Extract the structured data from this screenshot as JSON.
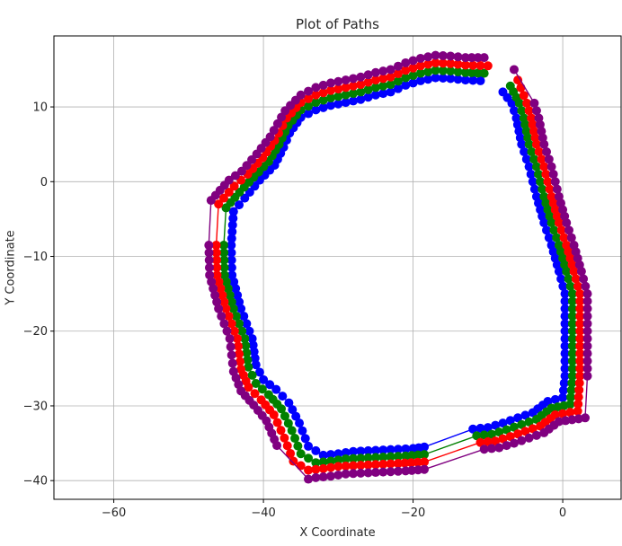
{
  "chart_data": {
    "type": "line",
    "title": "Plot of Paths",
    "xlabel": "X Coordinate",
    "ylabel": "Y Coordinate",
    "xlim": [
      -68,
      7.8
    ],
    "ylim": [
      -42.5,
      19.5
    ],
    "xticks": [
      -60,
      -40,
      -20,
      0
    ],
    "yticks": [
      -40,
      -30,
      -20,
      -10,
      0,
      10
    ],
    "grid": true,
    "legend": "none",
    "series": [
      {
        "color": "#0000ff",
        "points": [
          [
            -11,
            13.5
          ],
          [
            -13,
            13.6
          ],
          [
            -15,
            13.8
          ],
          [
            -17,
            13.9
          ],
          [
            -19,
            13.5
          ],
          [
            -21,
            12.9
          ],
          [
            -23,
            12
          ],
          [
            -25,
            11.6
          ],
          [
            -27,
            11
          ],
          [
            -29,
            10.6
          ],
          [
            -31,
            10.2
          ],
          [
            -33,
            9.6
          ],
          [
            -35,
            8.6
          ],
          [
            -36.5,
            6.5
          ],
          [
            -37.3,
            4.6
          ],
          [
            -38.5,
            2.2
          ],
          [
            -40.5,
            0.2
          ],
          [
            -42.5,
            -2.2
          ],
          [
            -44,
            -4
          ],
          [
            -44.3,
            -8.5
          ],
          [
            -44.2,
            -12.5
          ],
          [
            -43,
            -17
          ],
          [
            -41.5,
            -21
          ],
          [
            -41,
            -24.5
          ],
          [
            -40,
            -26.5
          ],
          [
            -38.3,
            -27.8
          ],
          [
            -36.6,
            -29.6
          ],
          [
            -35.2,
            -32.3
          ],
          [
            -34,
            -35.4
          ],
          [
            -32,
            -36.6
          ],
          [
            -30,
            -36.4
          ],
          [
            -28,
            -36.1
          ],
          [
            -26,
            -36
          ],
          [
            -24,
            -35.9
          ],
          [
            -22,
            -35.8
          ],
          [
            -20,
            -35.7
          ],
          [
            -18.5,
            -35.5
          ],
          [
            -12,
            -33.1
          ],
          [
            -10,
            -32.9
          ],
          [
            -8,
            -32.3
          ],
          [
            -6,
            -31.6
          ],
          [
            -4,
            -30.9
          ],
          [
            -2,
            -29.4
          ],
          [
            0,
            -28.9
          ],
          [
            0.3,
            -26
          ],
          [
            0.3,
            -22
          ],
          [
            0.3,
            -18
          ],
          [
            0.3,
            -15
          ],
          [
            -0.5,
            -12
          ],
          [
            -1.5,
            -8.5
          ],
          [
            -2.5,
            -5.5
          ],
          [
            -3.5,
            -2
          ],
          [
            -4.5,
            2
          ],
          [
            -5.5,
            5
          ],
          [
            -6.2,
            8.5
          ],
          [
            -6.8,
            10.5
          ],
          [
            -8,
            12
          ]
        ]
      },
      {
        "color": "#008000",
        "points": [
          [
            -10.5,
            14.5
          ],
          [
            -13,
            14.6
          ],
          [
            -15,
            14.8
          ],
          [
            -17,
            14.9
          ],
          [
            -19,
            14.5
          ],
          [
            -21,
            13.9
          ],
          [
            -23,
            13
          ],
          [
            -25,
            12.6
          ],
          [
            -27,
            12
          ],
          [
            -29,
            11.6
          ],
          [
            -31,
            11.2
          ],
          [
            -33,
            10.6
          ],
          [
            -35,
            9.6
          ],
          [
            -36.7,
            7.5
          ],
          [
            -37.9,
            5
          ],
          [
            -39.3,
            2.7
          ],
          [
            -41.3,
            0.6
          ],
          [
            -43.2,
            -1.4
          ],
          [
            -45,
            -3.5
          ],
          [
            -45.3,
            -8.5
          ],
          [
            -45.2,
            -12.5
          ],
          [
            -44,
            -17
          ],
          [
            -42.5,
            -21
          ],
          [
            -42,
            -24.8
          ],
          [
            -41,
            -27
          ],
          [
            -39.3,
            -28.5
          ],
          [
            -37.6,
            -30.4
          ],
          [
            -36.2,
            -33.3
          ],
          [
            -35,
            -36.4
          ],
          [
            -33,
            -37.6
          ],
          [
            -31,
            -37.4
          ],
          [
            -29,
            -37.1
          ],
          [
            -27,
            -37
          ],
          [
            -25,
            -36.9
          ],
          [
            -23,
            -36.8
          ],
          [
            -21,
            -36.7
          ],
          [
            -18.5,
            -36.5
          ],
          [
            -11.5,
            -34
          ],
          [
            -9.5,
            -33.8
          ],
          [
            -7.5,
            -33.2
          ],
          [
            -5.5,
            -32.5
          ],
          [
            -3.5,
            -31.8
          ],
          [
            -1.5,
            -30.3
          ],
          [
            1,
            -29.8
          ],
          [
            1.3,
            -26
          ],
          [
            1.3,
            -22
          ],
          [
            1.3,
            -18
          ],
          [
            1.3,
            -15
          ],
          [
            0.5,
            -12
          ],
          [
            -0.5,
            -8.5
          ],
          [
            -1.5,
            -5.5
          ],
          [
            -2.5,
            -2
          ],
          [
            -3.5,
            2
          ],
          [
            -4.5,
            5
          ],
          [
            -5.2,
            8.5
          ],
          [
            -5.8,
            10.5
          ],
          [
            -7,
            12.8
          ]
        ]
      },
      {
        "color": "#ff0000",
        "points": [
          [
            -10,
            15.5
          ],
          [
            -13,
            15.6
          ],
          [
            -15,
            15.8
          ],
          [
            -17,
            15.9
          ],
          [
            -19,
            15.5
          ],
          [
            -21,
            14.9
          ],
          [
            -23,
            14
          ],
          [
            -25,
            13.6
          ],
          [
            -27,
            13
          ],
          [
            -29,
            12.6
          ],
          [
            -31,
            12.2
          ],
          [
            -33,
            11.6
          ],
          [
            -35,
            10.6
          ],
          [
            -36.9,
            8.5
          ],
          [
            -38.5,
            5.5
          ],
          [
            -40.1,
            3.2
          ],
          [
            -42.1,
            1
          ],
          [
            -43.9,
            -0.6
          ],
          [
            -46,
            -3
          ],
          [
            -46.3,
            -8.5
          ],
          [
            -46.2,
            -12.5
          ],
          [
            -45,
            -17
          ],
          [
            -43.5,
            -21
          ],
          [
            -43,
            -25.1
          ],
          [
            -42,
            -27.5
          ],
          [
            -40.3,
            -29.2
          ],
          [
            -38.6,
            -31.2
          ],
          [
            -37.2,
            -34.3
          ],
          [
            -36,
            -37.4
          ],
          [
            -34,
            -38.6
          ],
          [
            -32,
            -38.4
          ],
          [
            -30,
            -38.1
          ],
          [
            -28,
            -38
          ],
          [
            -26,
            -37.9
          ],
          [
            -24,
            -37.8
          ],
          [
            -22,
            -37.7
          ],
          [
            -18.5,
            -37.5
          ],
          [
            -11,
            -34.9
          ],
          [
            -9,
            -34.7
          ],
          [
            -7,
            -34.1
          ],
          [
            -5,
            -33.4
          ],
          [
            -3,
            -32.7
          ],
          [
            -1,
            -31.2
          ],
          [
            2,
            -30.7
          ],
          [
            2.3,
            -26
          ],
          [
            2.3,
            -22
          ],
          [
            2.3,
            -18
          ],
          [
            2.3,
            -15
          ],
          [
            1.5,
            -12
          ],
          [
            0.5,
            -8.5
          ],
          [
            -0.5,
            -5.5
          ],
          [
            -1.5,
            -2
          ],
          [
            -2.5,
            2
          ],
          [
            -3.5,
            5
          ],
          [
            -4.2,
            8.5
          ],
          [
            -4.8,
            10.5
          ],
          [
            -6,
            13.6
          ]
        ]
      },
      {
        "color": "#800080",
        "points": [
          [
            -10.5,
            16.6
          ],
          [
            -13,
            16.6
          ],
          [
            -15,
            16.8
          ],
          [
            -17,
            16.9
          ],
          [
            -19,
            16.5
          ],
          [
            -21,
            15.9
          ],
          [
            -23,
            15
          ],
          [
            -25,
            14.6
          ],
          [
            -27,
            14
          ],
          [
            -29,
            13.6
          ],
          [
            -31,
            13.2
          ],
          [
            -33,
            12.6
          ],
          [
            -35,
            11.6
          ],
          [
            -37.1,
            9.5
          ],
          [
            -39.1,
            6
          ],
          [
            -40.9,
            3.7
          ],
          [
            -42.9,
            1.4
          ],
          [
            -44.6,
            0.2
          ],
          [
            -47,
            -2.5
          ],
          [
            -47.3,
            -8.5
          ],
          [
            -47.2,
            -12.5
          ],
          [
            -46,
            -17
          ],
          [
            -44.5,
            -21
          ],
          [
            -44,
            -25.4
          ],
          [
            -43,
            -28
          ],
          [
            -41.3,
            -29.9
          ],
          [
            -39.6,
            -32
          ],
          [
            -38.2,
            -35.3
          ],
          [
            -34,
            -39.8
          ],
          [
            -33,
            -39.6
          ],
          [
            -31,
            -39.4
          ],
          [
            -29,
            -39.1
          ],
          [
            -27,
            -39
          ],
          [
            -25,
            -38.9
          ],
          [
            -23,
            -38.8
          ],
          [
            -21,
            -38.7
          ],
          [
            -18.5,
            -38.5
          ],
          [
            -10.5,
            -35.8
          ],
          [
            -8.5,
            -35.6
          ],
          [
            -6.5,
            -35
          ],
          [
            -4.5,
            -34.3
          ],
          [
            -2.5,
            -33.6
          ],
          [
            -0.5,
            -32.1
          ],
          [
            3,
            -31.6
          ],
          [
            3.3,
            -26
          ],
          [
            3.3,
            -22
          ],
          [
            3.3,
            -18
          ],
          [
            3.3,
            -15
          ],
          [
            2.5,
            -12
          ],
          [
            1.5,
            -8.5
          ],
          [
            0.5,
            -5.5
          ],
          [
            -0.5,
            -2
          ],
          [
            -1.5,
            2
          ],
          [
            -2.5,
            5
          ],
          [
            -3.2,
            8.5
          ],
          [
            -3.8,
            10.5
          ],
          [
            -6.5,
            15
          ]
        ]
      }
    ]
  }
}
